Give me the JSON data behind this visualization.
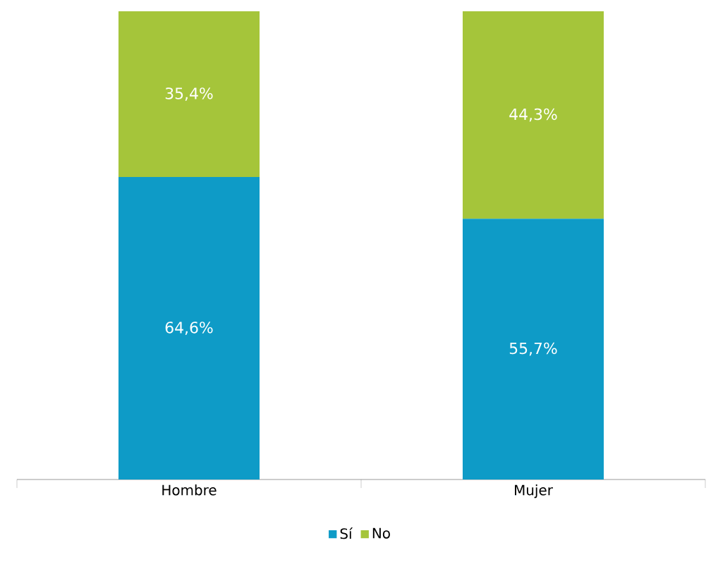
{
  "chart_data": {
    "type": "bar",
    "stacked": true,
    "categories": [
      "Hombre",
      "Mujer"
    ],
    "series": [
      {
        "name": "Sí",
        "color": "#0e9bc7",
        "values": [
          64.6,
          55.7
        ],
        "value_labels": [
          "64,6%",
          "55,7%"
        ]
      },
      {
        "name": "No",
        "color": "#a5c53a",
        "values": [
          35.4,
          44.3
        ],
        "value_labels": [
          "35,4%",
          "44,3%"
        ]
      }
    ],
    "legend": "bottom"
  }
}
